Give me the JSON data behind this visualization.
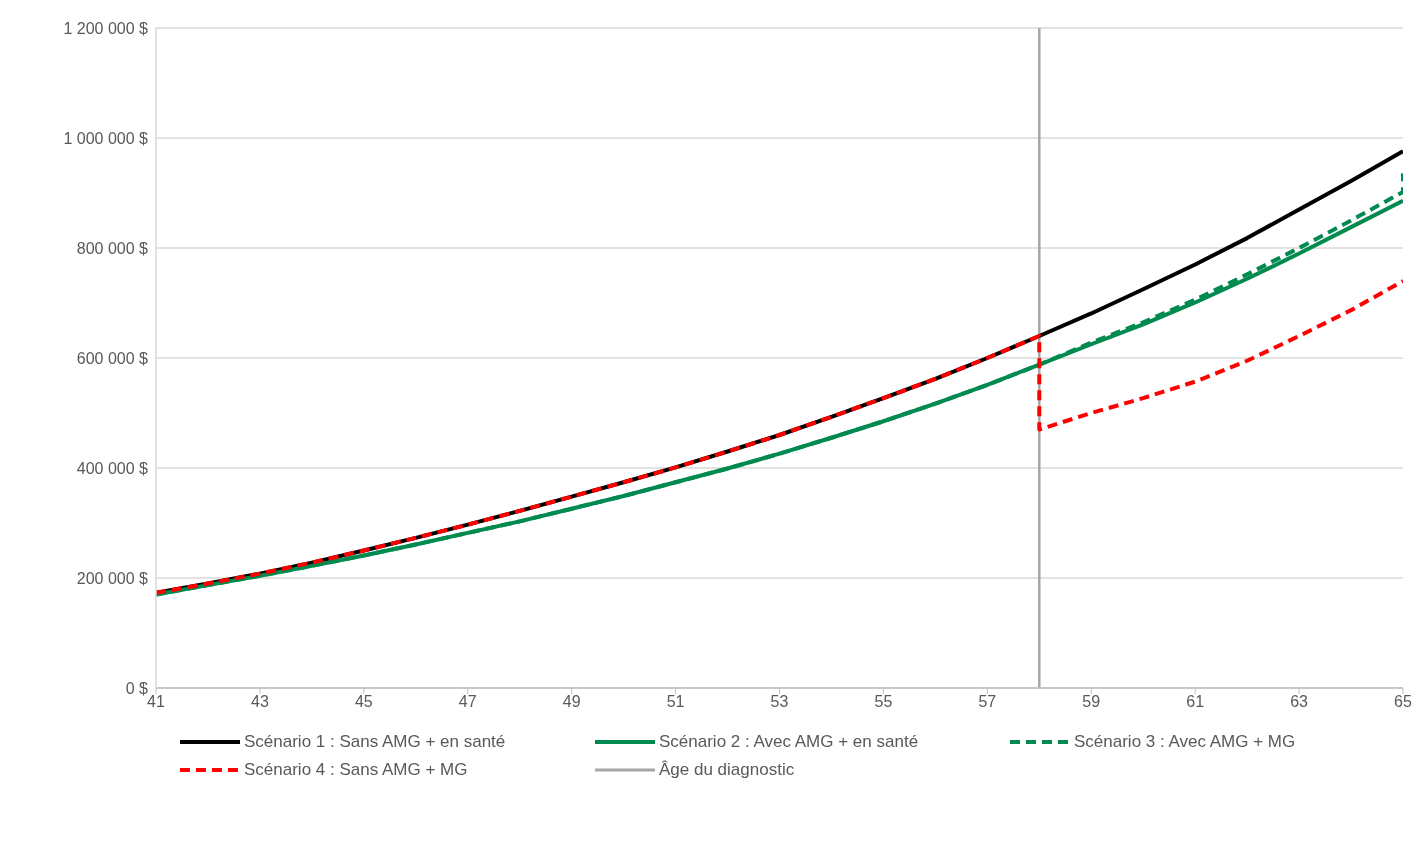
{
  "chart_data": {
    "type": "line",
    "x": [
      41,
      42,
      43,
      44,
      45,
      46,
      47,
      48,
      49,
      50,
      51,
      52,
      53,
      54,
      55,
      56,
      57,
      58,
      59,
      60,
      61,
      62,
      63,
      64,
      65
    ],
    "series": [
      {
        "name": "Scénario 1 : Sans AMG + en santé",
        "color": "#000000",
        "line_style": "solid",
        "values": [
          173000,
          190000,
          208000,
          228000,
          250000,
          273000,
          297000,
          322000,
          348000,
          374000,
          401000,
          430000,
          460000,
          493000,
          527000,
          562000,
          600000,
          640000,
          681000,
          725000,
          770000,
          818000,
          870000,
          922000,
          976000
        ]
      },
      {
        "name": "Scénario 2 : Avec AMG + en santé",
        "color": "#008a4f",
        "line_style": "solid",
        "values": [
          170000,
          187000,
          204000,
          222000,
          241000,
          261000,
          282000,
          303000,
          326000,
          349000,
          374000,
          399000,
          426000,
          455000,
          485000,
          517000,
          551000,
          588000,
          625000,
          661000,
          701000,
          744000,
          790000,
          838000,
          886000
        ]
      },
      {
        "name": "Scénario 3 : Avec AMG + MG",
        "color": "#008a4f",
        "line_style": "dashed",
        "x": [
          41,
          42,
          43,
          44,
          45,
          46,
          47,
          48,
          49,
          50,
          51,
          52,
          53,
          54,
          55,
          56,
          57,
          58,
          59,
          60,
          61,
          62,
          63,
          64,
          65,
          65
        ],
        "values": [
          170000,
          187000,
          204000,
          222000,
          241000,
          261000,
          282000,
          303000,
          326000,
          349000,
          374000,
          399000,
          426000,
          455000,
          485000,
          517000,
          551000,
          588000,
          628000,
          665000,
          706000,
          752000,
          800000,
          850000,
          902000,
          936000
        ]
      },
      {
        "name": "Scénario 4 : Sans AMG + MG",
        "color": "#ff0000",
        "line_style": "dashed",
        "x": [
          41,
          42,
          43,
          44,
          45,
          46,
          47,
          48,
          49,
          50,
          51,
          52,
          53,
          54,
          55,
          56,
          57,
          58,
          58,
          59,
          60,
          61,
          62,
          63,
          64,
          65
        ],
        "values": [
          173000,
          190000,
          208000,
          228000,
          250000,
          273000,
          297000,
          322000,
          348000,
          374000,
          401000,
          430000,
          460000,
          493000,
          527000,
          562000,
          600000,
          640000,
          470000,
          500000,
          527000,
          557000,
          595000,
          640000,
          687000,
          740000
        ]
      }
    ],
    "ref_lines": [
      {
        "axis": "x",
        "value": 58,
        "label": "Âge du diagnostic",
        "color": "#a6a6a6",
        "line_style": "solid"
      }
    ],
    "xlim": [
      41,
      65
    ],
    "xticks": [
      41,
      43,
      45,
      47,
      49,
      51,
      53,
      55,
      57,
      59,
      61,
      63,
      65
    ],
    "ylim": [
      0,
      1200000
    ],
    "yticks": [
      {
        "value": 0,
        "label": "0 $"
      },
      {
        "value": 200000,
        "label": "200 000 $"
      },
      {
        "value": 400000,
        "label": "400 000 $"
      },
      {
        "value": 600000,
        "label": "600 000 $"
      },
      {
        "value": 800000,
        "label": "800 000 $"
      },
      {
        "value": 1000000,
        "label": "1 000 000 $"
      },
      {
        "value": 1200000,
        "label": "1 200 000 $"
      }
    ],
    "grid": "y",
    "legend": "bottom",
    "marker": "none"
  }
}
